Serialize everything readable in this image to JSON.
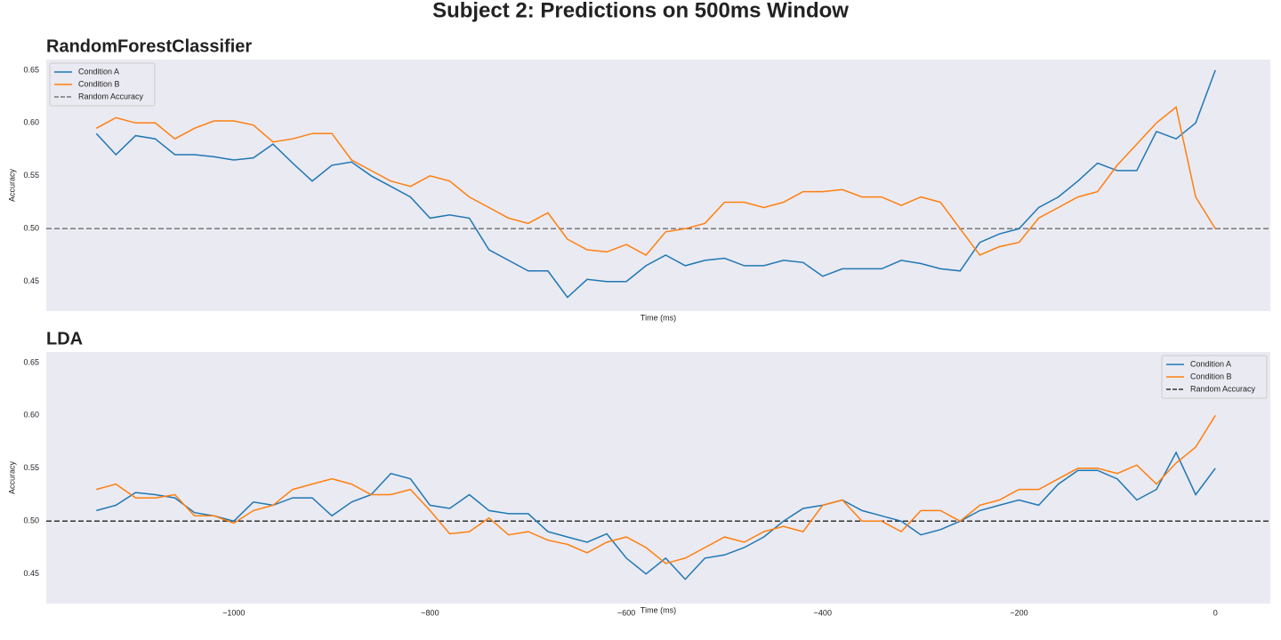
{
  "title": "Subject 2: Predictions on 500ms Window",
  "chart_data": [
    {
      "type": "line",
      "title": "RandomForestClassifier",
      "xlabel": "Time (ms)",
      "ylabel": "Accuracy",
      "xlim": [
        -1191,
        56
      ],
      "ylim": [
        0.422,
        0.66
      ],
      "yticks": [
        0.45,
        {
          "value": 0.5,
          "label": "0.50"
        },
        0.55,
        {
          "value": 0.6,
          "label": "0.60"
        },
        0.65
      ],
      "grid": false,
      "legend": "upper left",
      "x": [
        -1140,
        -1120,
        -1100,
        -1080,
        -1060,
        -1040,
        -1020,
        -1000,
        -980,
        -960,
        -940,
        -920,
        -900,
        -880,
        -860,
        -840,
        -820,
        -800,
        -780,
        -760,
        -740,
        -720,
        -700,
        -680,
        -660,
        -640,
        -620,
        -600,
        -580,
        -560,
        -540,
        -520,
        -500,
        -480,
        -460,
        -440,
        -420,
        -400,
        -380,
        -360,
        -340,
        -320,
        -300,
        -280,
        -260,
        -240,
        -220,
        -200,
        -180,
        -160,
        -140,
        -120,
        -100,
        -80,
        -60,
        -40,
        -20,
        0
      ],
      "series": [
        {
          "name": "Condition A",
          "color": "#1f77b4",
          "values": [
            0.59,
            0.57,
            0.588,
            0.585,
            0.57,
            0.57,
            0.568,
            0.565,
            0.567,
            0.58,
            0.562,
            0.545,
            0.56,
            0.563,
            0.55,
            0.54,
            0.53,
            0.51,
            0.513,
            0.51,
            0.48,
            0.47,
            0.46,
            0.46,
            0.435,
            0.452,
            0.45,
            0.45,
            0.465,
            0.475,
            0.465,
            0.47,
            0.472,
            0.465,
            0.465,
            0.47,
            0.468,
            0.455,
            0.462,
            0.462,
            0.462,
            0.47,
            0.467,
            0.462,
            0.46,
            0.487,
            0.495,
            0.5,
            0.52,
            0.53,
            0.545,
            0.562,
            0.555,
            0.555,
            0.592,
            0.585,
            0.6,
            0.65
          ]
        },
        {
          "name": "Condition B",
          "color": "#ff7f0e",
          "values": [
            0.595,
            0.605,
            0.6,
            0.6,
            0.585,
            0.595,
            0.602,
            0.602,
            0.598,
            0.582,
            0.585,
            0.59,
            0.59,
            0.565,
            0.555,
            0.545,
            0.54,
            0.55,
            0.545,
            0.53,
            0.52,
            0.51,
            0.505,
            0.515,
            0.49,
            0.48,
            0.478,
            0.485,
            0.475,
            0.497,
            0.5,
            0.505,
            0.525,
            0.525,
            0.52,
            0.525,
            0.535,
            0.535,
            0.537,
            0.53,
            0.53,
            0.522,
            0.53,
            0.525,
            0.5,
            0.475,
            0.483,
            0.487,
            0.51,
            0.52,
            0.53,
            0.535,
            0.56,
            0.58,
            0.6,
            0.615,
            0.53,
            0.5
          ]
        }
      ],
      "hline": {
        "name": "Random Accuracy",
        "value": 0.5,
        "color": "#777777",
        "dashed": true
      }
    },
    {
      "type": "line",
      "title": "LDA",
      "xlabel": "Time (ms)",
      "ylabel": "Accuracy",
      "xlim": [
        -1191,
        56
      ],
      "ylim": [
        0.422,
        0.66
      ],
      "xticks": [
        {
          "value": -1000,
          "label": "−1000"
        },
        {
          "value": -800,
          "label": "−800"
        },
        {
          "value": -600,
          "label": "−600"
        },
        {
          "value": -400,
          "label": "−400"
        },
        {
          "value": -200,
          "label": "−200"
        },
        0
      ],
      "yticks": [
        0.45,
        {
          "value": 0.5,
          "label": "0.50"
        },
        0.55,
        {
          "value": 0.6,
          "label": "0.60"
        },
        0.65
      ],
      "grid": false,
      "legend": "upper right",
      "x": [
        -1140,
        -1120,
        -1100,
        -1080,
        -1060,
        -1040,
        -1020,
        -1000,
        -980,
        -960,
        -940,
        -920,
        -900,
        -880,
        -860,
        -840,
        -820,
        -800,
        -780,
        -760,
        -740,
        -720,
        -700,
        -680,
        -660,
        -640,
        -620,
        -600,
        -580,
        -560,
        -540,
        -520,
        -500,
        -480,
        -460,
        -440,
        -420,
        -400,
        -380,
        -360,
        -340,
        -320,
        -300,
        -280,
        -260,
        -240,
        -220,
        -200,
        -180,
        -160,
        -140,
        -120,
        -100,
        -80,
        -60,
        -40,
        -20,
        0
      ],
      "series": [
        {
          "name": "Condition A",
          "color": "#1f77b4",
          "values": [
            0.51,
            0.515,
            0.527,
            0.525,
            0.522,
            0.508,
            0.505,
            0.5,
            0.518,
            0.515,
            0.522,
            0.522,
            0.505,
            0.518,
            0.525,
            0.545,
            0.54,
            0.515,
            0.512,
            0.525,
            0.51,
            0.507,
            0.507,
            0.49,
            0.485,
            0.48,
            0.488,
            0.465,
            0.45,
            0.465,
            0.445,
            0.465,
            0.468,
            0.475,
            0.485,
            0.5,
            0.512,
            0.515,
            0.52,
            0.51,
            0.505,
            0.5,
            0.487,
            0.492,
            0.5,
            0.51,
            0.515,
            0.52,
            0.515,
            0.535,
            0.548,
            0.548,
            0.54,
            0.52,
            0.53,
            0.565,
            0.525,
            0.55
          ]
        },
        {
          "name": "Condition B",
          "color": "#ff7f0e",
          "values": [
            0.53,
            0.535,
            0.522,
            0.522,
            0.525,
            0.505,
            0.505,
            0.498,
            0.51,
            0.515,
            0.53,
            0.535,
            0.54,
            0.535,
            0.525,
            0.525,
            0.53,
            0.51,
            0.488,
            0.49,
            0.503,
            0.487,
            0.49,
            0.482,
            0.478,
            0.47,
            0.48,
            0.485,
            0.475,
            0.46,
            0.465,
            0.475,
            0.485,
            0.48,
            0.49,
            0.495,
            0.49,
            0.515,
            0.52,
            0.5,
            0.5,
            0.49,
            0.51,
            0.51,
            0.5,
            0.515,
            0.52,
            0.53,
            0.53,
            0.54,
            0.55,
            0.55,
            0.545,
            0.553,
            0.535,
            0.555,
            0.57,
            0.6
          ]
        }
      ],
      "hline": {
        "name": "Random Accuracy",
        "value": 0.5,
        "color": "#333333",
        "dashed": true
      }
    }
  ]
}
